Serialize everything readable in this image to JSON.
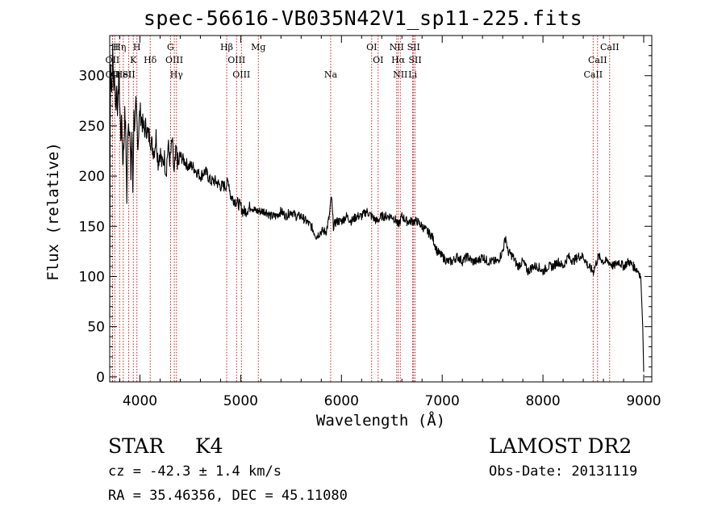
{
  "chart_data": {
    "type": "line",
    "title": "spec-56616-VB035N42V1_sp11-225.fits",
    "xlabel": "Wavelength (Å)",
    "ylabel": "Flux (relative)",
    "xlim": [
      3700,
      9080
    ],
    "ylim": [
      -5,
      340
    ],
    "xticks": [
      4000,
      5000,
      6000,
      7000,
      8000,
      9000
    ],
    "yticks": [
      0,
      50,
      100,
      150,
      200,
      250,
      300
    ],
    "grid": false,
    "line_color": "#000000",
    "marker_color": "#cc0000",
    "series": [
      {
        "x": [
          3700,
          3705,
          3710,
          3720,
          3730,
          3740,
          3750,
          3760,
          3770,
          3780,
          3790,
          3800,
          3810,
          3820,
          3830,
          3840,
          3850,
          3860,
          3870,
          3880,
          3890,
          3900,
          3910,
          3920,
          3930,
          3940,
          3950,
          3960,
          3970,
          3980,
          3990,
          4000,
          4020,
          4040,
          4060,
          4080,
          4100,
          4120,
          4140,
          4160,
          4180,
          4200,
          4220,
          4240,
          4260,
          4280,
          4300,
          4320,
          4340,
          4360,
          4380,
          4400,
          4440,
          4480,
          4520,
          4560,
          4600,
          4650,
          4700,
          4750,
          4800,
          4850,
          4880,
          4900,
          4950,
          5000,
          5020,
          5050,
          5100,
          5150,
          5200,
          5250,
          5300,
          5350,
          5400,
          5450,
          5500,
          5550,
          5600,
          5650,
          5700,
          5750,
          5800,
          5850,
          5880,
          5900,
          5920,
          5950,
          6000,
          6050,
          6100,
          6150,
          6200,
          6250,
          6300,
          6350,
          6400,
          6450,
          6500,
          6550,
          6560,
          6600,
          6650,
          6700,
          6750,
          6800,
          6850,
          6900,
          6950,
          7000,
          7050,
          7100,
          7150,
          7200,
          7250,
          7300,
          7350,
          7400,
          7450,
          7500,
          7550,
          7600,
          7630,
          7650,
          7700,
          7750,
          7800,
          7850,
          7900,
          7950,
          8000,
          8050,
          8100,
          8150,
          8200,
          8250,
          8300,
          8350,
          8400,
          8450,
          8500,
          8550,
          8600,
          8650,
          8700,
          8750,
          8800,
          8850,
          8900,
          8950,
          8970,
          8990,
          9000
        ],
        "y": [
          60,
          250,
          310,
          285,
          320,
          290,
          300,
          265,
          290,
          260,
          305,
          270,
          240,
          255,
          215,
          230,
          260,
          240,
          175,
          250,
          255,
          240,
          200,
          245,
          185,
          260,
          245,
          270,
          255,
          230,
          250,
          265,
          255,
          245,
          250,
          240,
          240,
          230,
          225,
          240,
          215,
          225,
          210,
          220,
          205,
          230,
          215,
          235,
          200,
          225,
          210,
          220,
          215,
          210,
          210,
          205,
          200,
          205,
          195,
          195,
          190,
          190,
          195,
          180,
          175,
          170,
          165,
          165,
          170,
          165,
          165,
          165,
          160,
          160,
          165,
          160,
          165,
          160,
          160,
          155,
          150,
          140,
          145,
          145,
          160,
          180,
          150,
          155,
          155,
          160,
          155,
          160,
          160,
          165,
          160,
          155,
          160,
          160,
          160,
          155,
          150,
          160,
          155,
          155,
          155,
          150,
          145,
          140,
          125,
          120,
          115,
          115,
          120,
          115,
          120,
          115,
          115,
          120,
          115,
          115,
          115,
          125,
          140,
          125,
          120,
          110,
          115,
          105,
          110,
          110,
          105,
          110,
          110,
          115,
          110,
          120,
          115,
          120,
          120,
          110,
          105,
          120,
          115,
          115,
          110,
          115,
          110,
          115,
          110,
          105,
          100,
          50,
          5
        ]
      }
    ],
    "line_markers": [
      {
        "wavelength": 3727,
        "label": "OII",
        "row": 2
      },
      {
        "wavelength": 3728,
        "label": "OII",
        "row": 4
      },
      {
        "wavelength": 3750,
        "label": "H",
        "row": 1
      },
      {
        "wavelength": 3798,
        "label": "Hη",
        "row": 1
      },
      {
        "wavelength": 3835,
        "label": "HeI",
        "row": 4
      },
      {
        "wavelength": 3889,
        "label": "SII",
        "row": 4
      },
      {
        "wavelength": 3934,
        "label": "K",
        "row": 2
      },
      {
        "wavelength": 3970,
        "label": "H",
        "row": 1
      },
      {
        "wavelength": 4102,
        "label": "Hδ",
        "row": 2
      },
      {
        "wavelength": 4304,
        "label": "G",
        "row": 1
      },
      {
        "wavelength": 4341,
        "label": "OIII",
        "row": 2
      },
      {
        "wavelength": 4363,
        "label": "Hγ",
        "row": 4
      },
      {
        "wavelength": 4861,
        "label": "Hβ",
        "row": 1
      },
      {
        "wavelength": 4959,
        "label": "OIII",
        "row": 2
      },
      {
        "wavelength": 5007,
        "label": "OIII",
        "row": 4
      },
      {
        "wavelength": 5175,
        "label": "Mg",
        "row": 1
      },
      {
        "wavelength": 5893,
        "label": "Na",
        "row": 4
      },
      {
        "wavelength": 6300,
        "label": "OI",
        "row": 1
      },
      {
        "wavelength": 6364,
        "label": "OI",
        "row": 3
      },
      {
        "wavelength": 6548,
        "label": "NII",
        "row": 1
      },
      {
        "wavelength": 6563,
        "label": "Hα",
        "row": 3
      },
      {
        "wavelength": 6584,
        "label": "NII",
        "row": 4
      },
      {
        "wavelength": 6707,
        "label": "Li",
        "row": 4
      },
      {
        "wavelength": 6716,
        "label": "SII",
        "row": 1
      },
      {
        "wavelength": 6731,
        "label": "SII",
        "row": 3
      },
      {
        "wavelength": 8498,
        "label": "CaII",
        "row": 4
      },
      {
        "wavelength": 8542,
        "label": "CaII",
        "row": 3
      },
      {
        "wavelength": 8662,
        "label": "CaII",
        "row": 1
      }
    ]
  },
  "info": {
    "class": "STAR",
    "subclass": "K4",
    "survey": "LAMOST DR2",
    "redshift": "cz = -42.3 ± 1.4 km/s",
    "obs_date": "Obs-Date: 20131119",
    "coords": "RA =  35.46356, DEC =  45.11080"
  }
}
